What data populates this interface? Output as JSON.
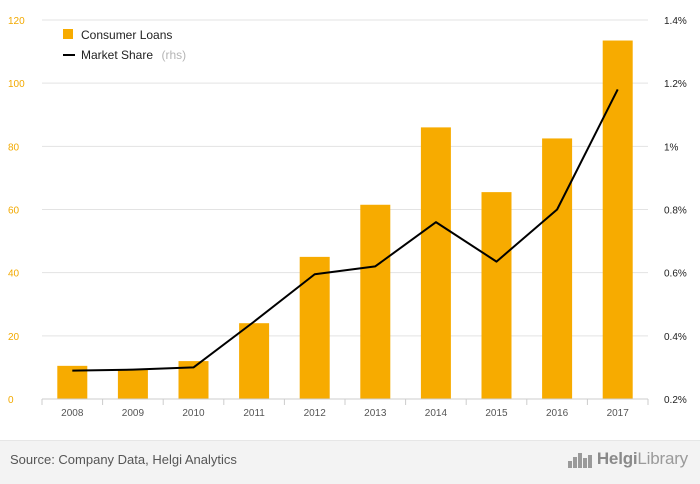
{
  "chart_data": {
    "type": "bar",
    "categories": [
      "2008",
      "2009",
      "2010",
      "2011",
      "2012",
      "2013",
      "2014",
      "2015",
      "2016",
      "2017"
    ],
    "series": [
      {
        "name": "Consumer Loans",
        "kind": "bar",
        "axis": "left",
        "color": "#f7ab00",
        "values": [
          10.5,
          9.5,
          12,
          24,
          45,
          61.5,
          86,
          65.5,
          82.5,
          113.5
        ]
      },
      {
        "name": "Market Share",
        "kind": "line",
        "axis": "right",
        "color": "#000000",
        "values": [
          0.29,
          0.293,
          0.3,
          0.445,
          0.595,
          0.62,
          0.76,
          0.635,
          0.8,
          1.18
        ]
      }
    ],
    "legend_note": "(rhs)",
    "legend_position": "top-left",
    "ylim": [
      0,
      120
    ],
    "yticks": [
      0,
      20,
      40,
      60,
      80,
      100,
      120
    ],
    "ytick_labels": [
      "0",
      "20",
      "40",
      "60",
      "80",
      "100",
      "120"
    ],
    "y2lim": [
      0.2,
      1.4
    ],
    "y2ticks": [
      0.2,
      0.4,
      0.6,
      0.8,
      1.0,
      1.2,
      1.4
    ],
    "y2tick_labels": [
      "0.2%",
      "0.4%",
      "0.6%",
      "0.8%",
      "1%",
      "1.2%",
      "1.4%"
    ],
    "grid": true,
    "left_tick_color": "#f2a900"
  },
  "footer": {
    "source": "Source: Company Data, Helgi Analytics",
    "brand_prefix": "Helgi",
    "brand_suffix": "Library"
  }
}
